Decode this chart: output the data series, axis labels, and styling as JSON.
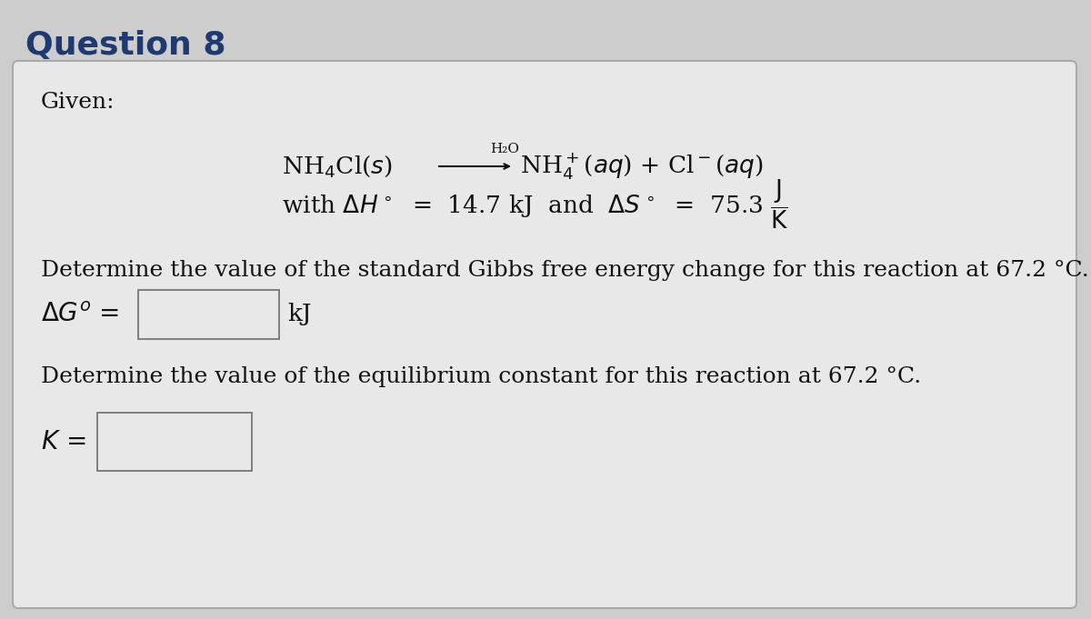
{
  "title": "Question 8",
  "title_color": "#1E3A6E",
  "title_fontsize": 26,
  "bg_color": "#CDCDCD",
  "card_color": "#E8E8E8",
  "given_label": "Given:",
  "h2o_label": "H₂O",
  "question1": "Determine the value of the standard Gibbs free energy change for this reaction at 67.2 °C.",
  "delta_g_unit": "kJ",
  "question2": "Determine the value of the equilibrium constant for this reaction at 67.2 °C.",
  "text_color": "#111111",
  "box_color": "#E8E8E8",
  "box_edge_color": "#777777",
  "body_fontsize": 18,
  "small_fontsize": 11
}
